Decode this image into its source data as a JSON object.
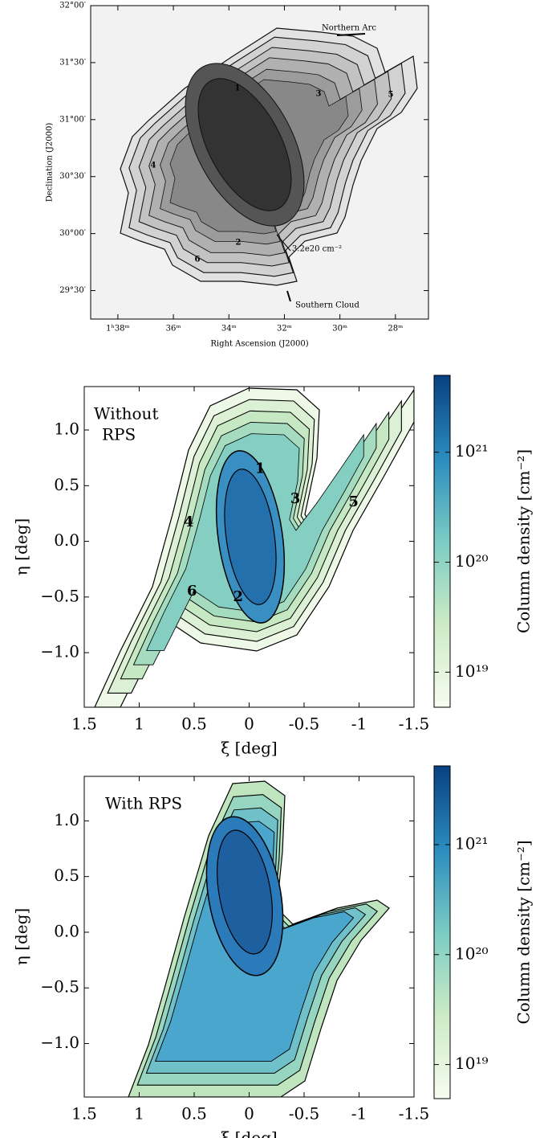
{
  "chart_data": [
    {
      "type": "image",
      "xlabel": "Right Ascension (J2000)",
      "ylabel": "Declination (J2000)",
      "xlim": [
        38.98,
        26.81
      ],
      "ylim": [
        29.25,
        32.0
      ],
      "xticks": [
        {
          "value": 38,
          "label": "1ʰ38ᵐ"
        },
        {
          "value": 36,
          "label": "36ᵐ"
        },
        {
          "value": 34,
          "label": "34ᵐ"
        },
        {
          "value": 32,
          "label": "32ᵐ"
        },
        {
          "value": 30,
          "label": "30ᵐ"
        },
        {
          "value": 28,
          "label": "28ᵐ"
        }
      ],
      "yticks": [
        {
          "value": 32.0,
          "label": "32°00′"
        },
        {
          "value": 31.5,
          "label": "31°30′"
        },
        {
          "value": 31.0,
          "label": "31°00′"
        },
        {
          "value": 30.5,
          "label": "30°30′"
        },
        {
          "value": 30.0,
          "label": "30°00′"
        },
        {
          "value": 29.5,
          "label": "29°30′"
        }
      ],
      "annotations": [
        "Northern Arc",
        "Southern Cloud",
        "3.2e20 cm⁻²"
      ],
      "region_labels": [
        "1",
        "3",
        "5",
        "4",
        "2",
        "6"
      ]
    },
    {
      "type": "heatmap",
      "xlabel": "ξ [deg]",
      "ylabel": "η [deg]",
      "xlim": [
        1.5,
        -1.5
      ],
      "ylim": [
        -1.49,
        1.39
      ],
      "xticks": [
        1.5,
        1,
        0.5,
        0,
        -0.5,
        -1,
        -1.5
      ],
      "yticks": [
        {
          "value": 1.0,
          "label": "1.0"
        },
        {
          "value": 0.5,
          "label": "0.5"
        },
        {
          "value": 0.0,
          "label": "0.0"
        },
        {
          "value": -0.5,
          "label": "−0.5"
        },
        {
          "value": -1.0,
          "label": "−1.0"
        }
      ],
      "annotation": [
        "Without",
        "RPS"
      ],
      "region_labels": [
        "1",
        "3",
        "5",
        "4",
        "6",
        "2"
      ],
      "colorbar": {
        "label": "Column density [cm⁻²]",
        "log_scale": true,
        "lim": [
          4.8e+18,
          5e+21
        ],
        "ticks": [
          {
            "value": 1e+19,
            "label": "10¹⁹"
          },
          {
            "value": 1e+20,
            "label": "10²⁰"
          },
          {
            "value": 1e+21,
            "label": "10²¹"
          }
        ]
      }
    },
    {
      "type": "heatmap",
      "xlabel": "ξ [deg]",
      "ylabel": "η [deg]",
      "xlim": [
        1.5,
        -1.5
      ],
      "ylim": [
        -1.48,
        1.4
      ],
      "xticks": [
        1.5,
        1,
        0.5,
        0,
        -0.5,
        -1,
        -1.5
      ],
      "yticks": [
        {
          "value": 1.0,
          "label": "1.0"
        },
        {
          "value": 0.5,
          "label": "0.5"
        },
        {
          "value": 0.0,
          "label": "0.0"
        },
        {
          "value": -0.5,
          "label": "−0.5"
        },
        {
          "value": -1.0,
          "label": "−1.0"
        }
      ],
      "annotation": [
        "With RPS"
      ],
      "colorbar": {
        "label": "Column density [cm⁻²]",
        "log_scale": true,
        "lim": [
          4.9e+18,
          5.2e+21
        ],
        "ticks": [
          {
            "value": 1e+19,
            "label": "10¹⁹"
          },
          {
            "value": 1e+20,
            "label": "10²⁰"
          },
          {
            "value": 1e+21,
            "label": "10²¹"
          }
        ]
      }
    }
  ]
}
